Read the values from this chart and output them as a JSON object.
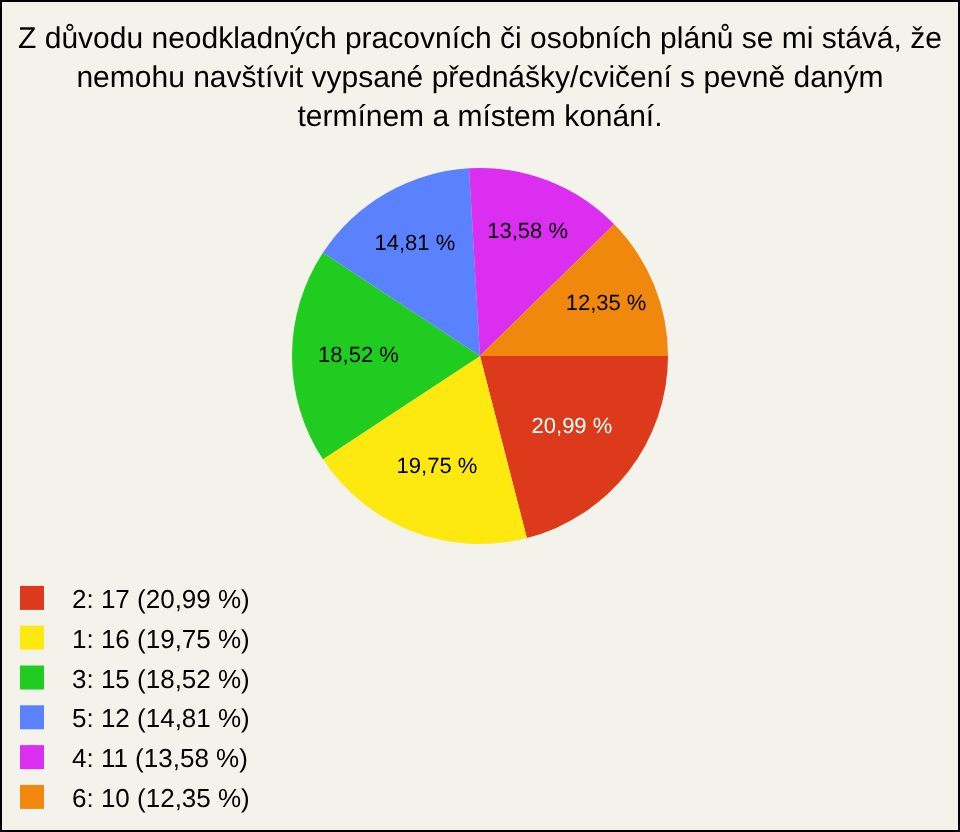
{
  "chart_data": {
    "type": "pie",
    "title": "Z důvodu neodkladných pracovních či osobních plánů se mi stává, že nemohu navštívit vypsané přednášky/cvičení s pevně daným termínem a místem konání.",
    "categories": [
      "2: 17 (20,99 %)",
      "1: 16 (19,75 %)",
      "3: 15 (18,52 %)",
      "5: 12 (14,81 %)",
      "4: 11 (13,58 %)",
      "6: 10 (12,35 %)"
    ],
    "values": [
      20.99,
      19.75,
      18.52,
      14.81,
      13.58,
      12.35
    ],
    "colors": [
      "#dc3a1a",
      "#fde910",
      "#1fcc1f",
      "#5a82ff",
      "#dc2ef0",
      "#f0880e"
    ],
    "value_labels": [
      "20,99 %",
      "19,75 %",
      "18,52 %",
      "14,81 %",
      "13,58 %",
      "12,35 %"
    ],
    "legend": "bottom left"
  }
}
